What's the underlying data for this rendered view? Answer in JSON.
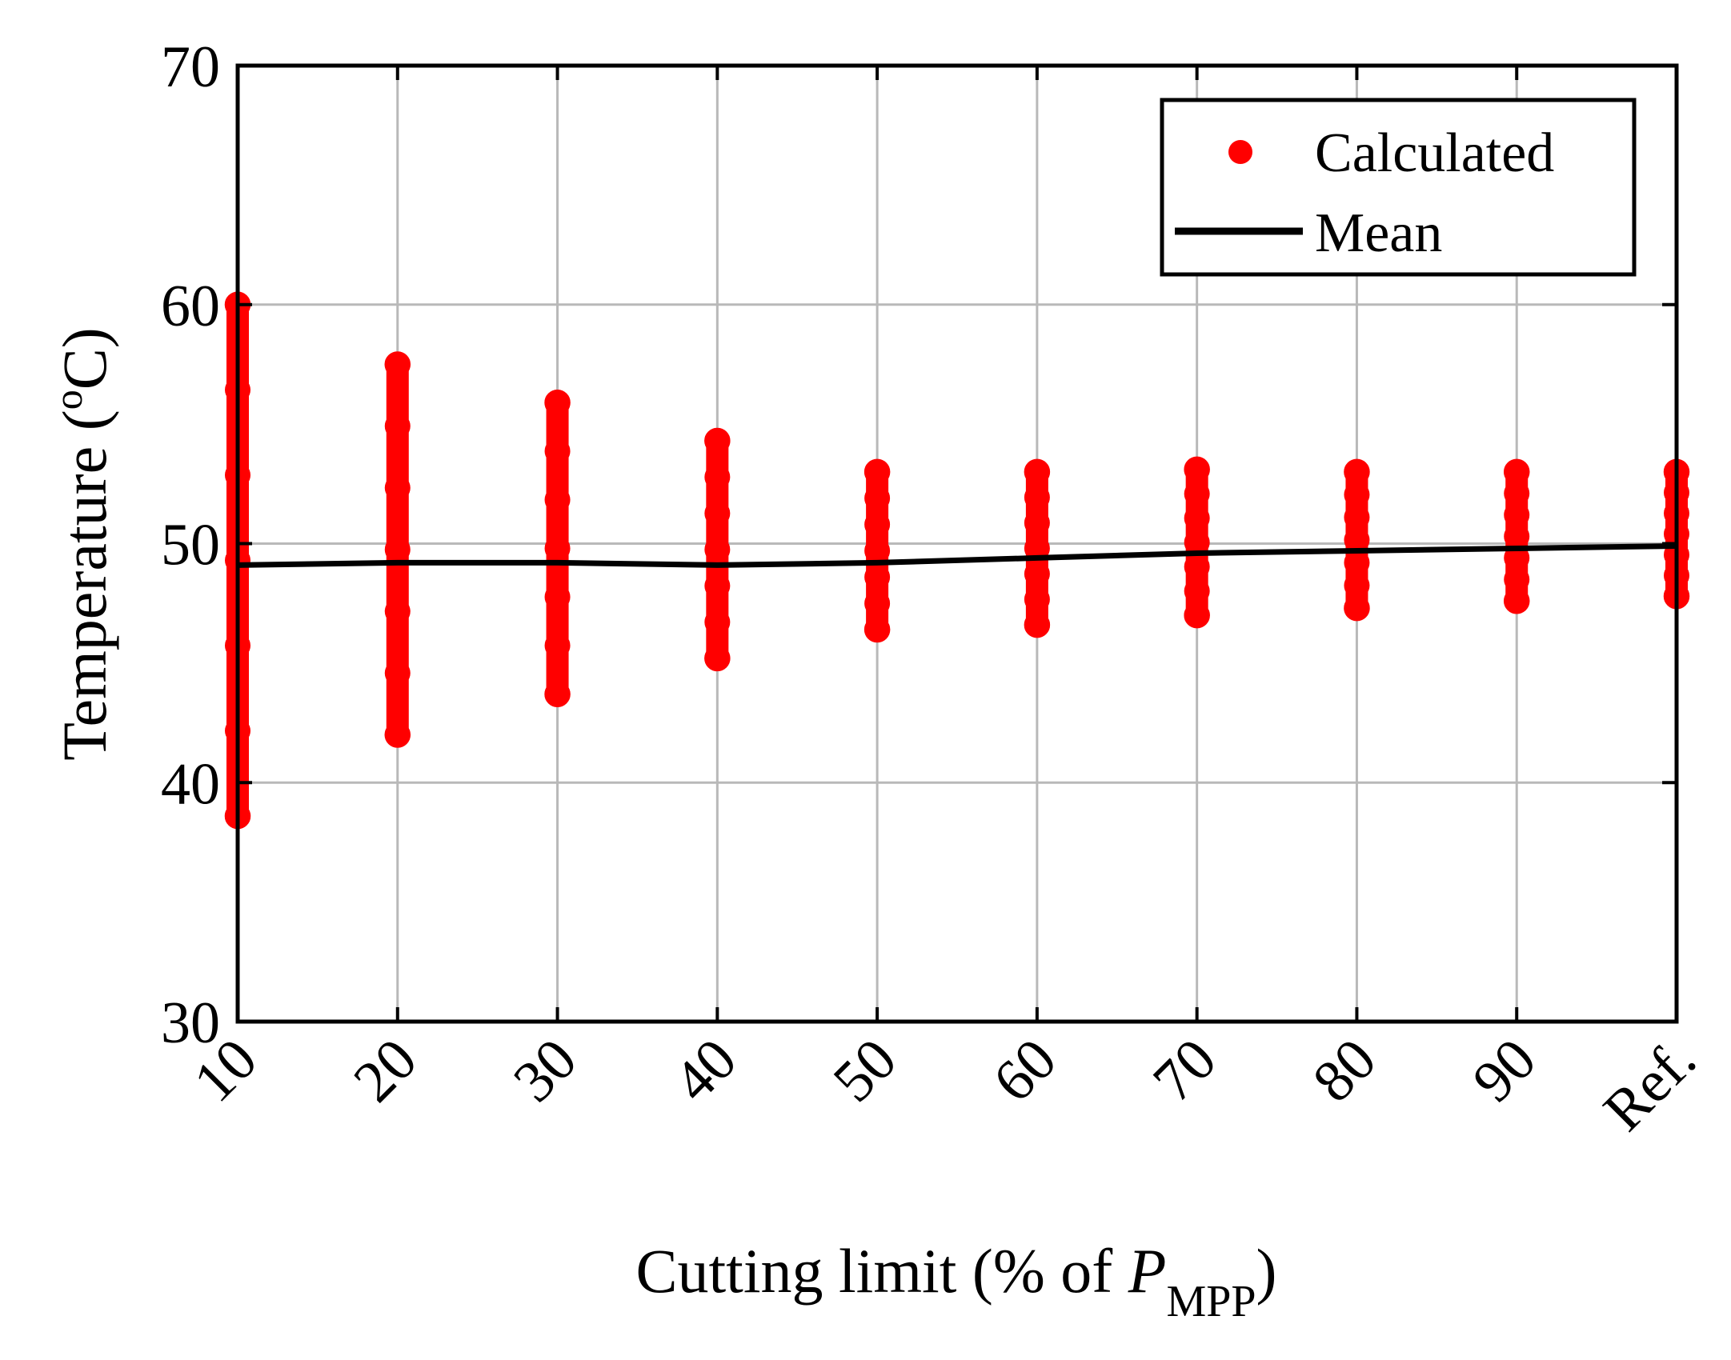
{
  "chart_data": {
    "type": "scatter",
    "title": "",
    "xlabel": {
      "main": "Cutting limit (% of ",
      "symbol": "P",
      "subscript": "MPP",
      "close": ")"
    },
    "ylabel": {
      "main": "Temperature (",
      "superscript": "o",
      "unit": "C)"
    },
    "categories": [
      "10",
      "20",
      "30",
      "40",
      "50",
      "60",
      "70",
      "80",
      "90",
      "Ref."
    ],
    "yticks": [
      "30",
      "40",
      "50",
      "60",
      "70"
    ],
    "ylim": [
      30,
      70
    ],
    "grid": true,
    "legend": {
      "position": "top-right",
      "entries": [
        "Calculated",
        "Mean"
      ]
    },
    "series": [
      {
        "name": "Calculated",
        "type": "scatter-range",
        "color": "#ff0000",
        "ranges": [
          {
            "min": 38.6,
            "max": 60.0
          },
          {
            "min": 42.0,
            "max": 57.5
          },
          {
            "min": 43.7,
            "max": 55.9
          },
          {
            "min": 45.2,
            "max": 54.3
          },
          {
            "min": 46.4,
            "max": 53.0
          },
          {
            "min": 46.6,
            "max": 53.0
          },
          {
            "min": 47.0,
            "max": 53.1
          },
          {
            "min": 47.3,
            "max": 53.0
          },
          {
            "min": 47.6,
            "max": 53.0
          },
          {
            "min": 47.8,
            "max": 53.0
          }
        ]
      },
      {
        "name": "Mean",
        "type": "line",
        "color": "#000000",
        "values": [
          49.1,
          49.2,
          49.2,
          49.1,
          49.2,
          49.4,
          49.6,
          49.7,
          49.8,
          49.9
        ]
      }
    ]
  }
}
